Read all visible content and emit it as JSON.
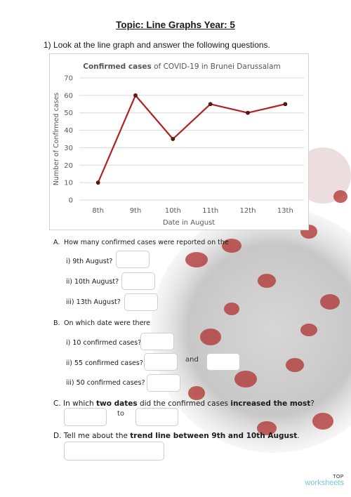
{
  "page": {
    "title": "Topic: Line Graphs Year: 5",
    "intro": "1) Look at the line graph and answer the following questions."
  },
  "chart_data": {
    "type": "line",
    "title_bold": "Confirmed cases",
    "title_rest": " of COVID-19 in Brunei Darussalam",
    "title": "Confirmed cases of COVID-19 in Brunei Darussalam",
    "xlabel": "Date in August",
    "ylabel": "Number of Confirmed cases",
    "categories": [
      "8th",
      "9th",
      "10th",
      "11th",
      "12th",
      "13th"
    ],
    "series": [
      {
        "values": [
          10,
          60,
          35,
          55,
          50,
          55
        ],
        "color": "#b22222"
      }
    ],
    "yticks": [
      0,
      10,
      20,
      30,
      40,
      50,
      60,
      70
    ],
    "ylim": [
      0,
      70
    ],
    "grid": true
  },
  "questions": {
    "a": {
      "label": "A.",
      "text": "How many confirmed cases were reported on the",
      "items": [
        "i) 9th August?",
        "ii) 10th August?",
        "iii) 13th August?"
      ]
    },
    "b": {
      "label": "B.",
      "text": "On which date were there",
      "items": [
        "i) 10 confirmed cases?",
        "ii) 55 confirmed cases?",
        "iii) 50 confirmed cases?"
      ],
      "and_word": "and"
    },
    "c": {
      "label": "C.",
      "t1": "In which ",
      "t2": "two dates",
      "t3": " did the confirmed cases ",
      "t4": "increased the most",
      "t5": "?",
      "to_word": "to"
    },
    "d": {
      "label": "D.",
      "t1": "Tell me about the ",
      "t2": "trend line between 9th and 10th August",
      "t3": "."
    }
  },
  "branding": {
    "top": "TOP",
    "worksheets": "worksheets"
  }
}
